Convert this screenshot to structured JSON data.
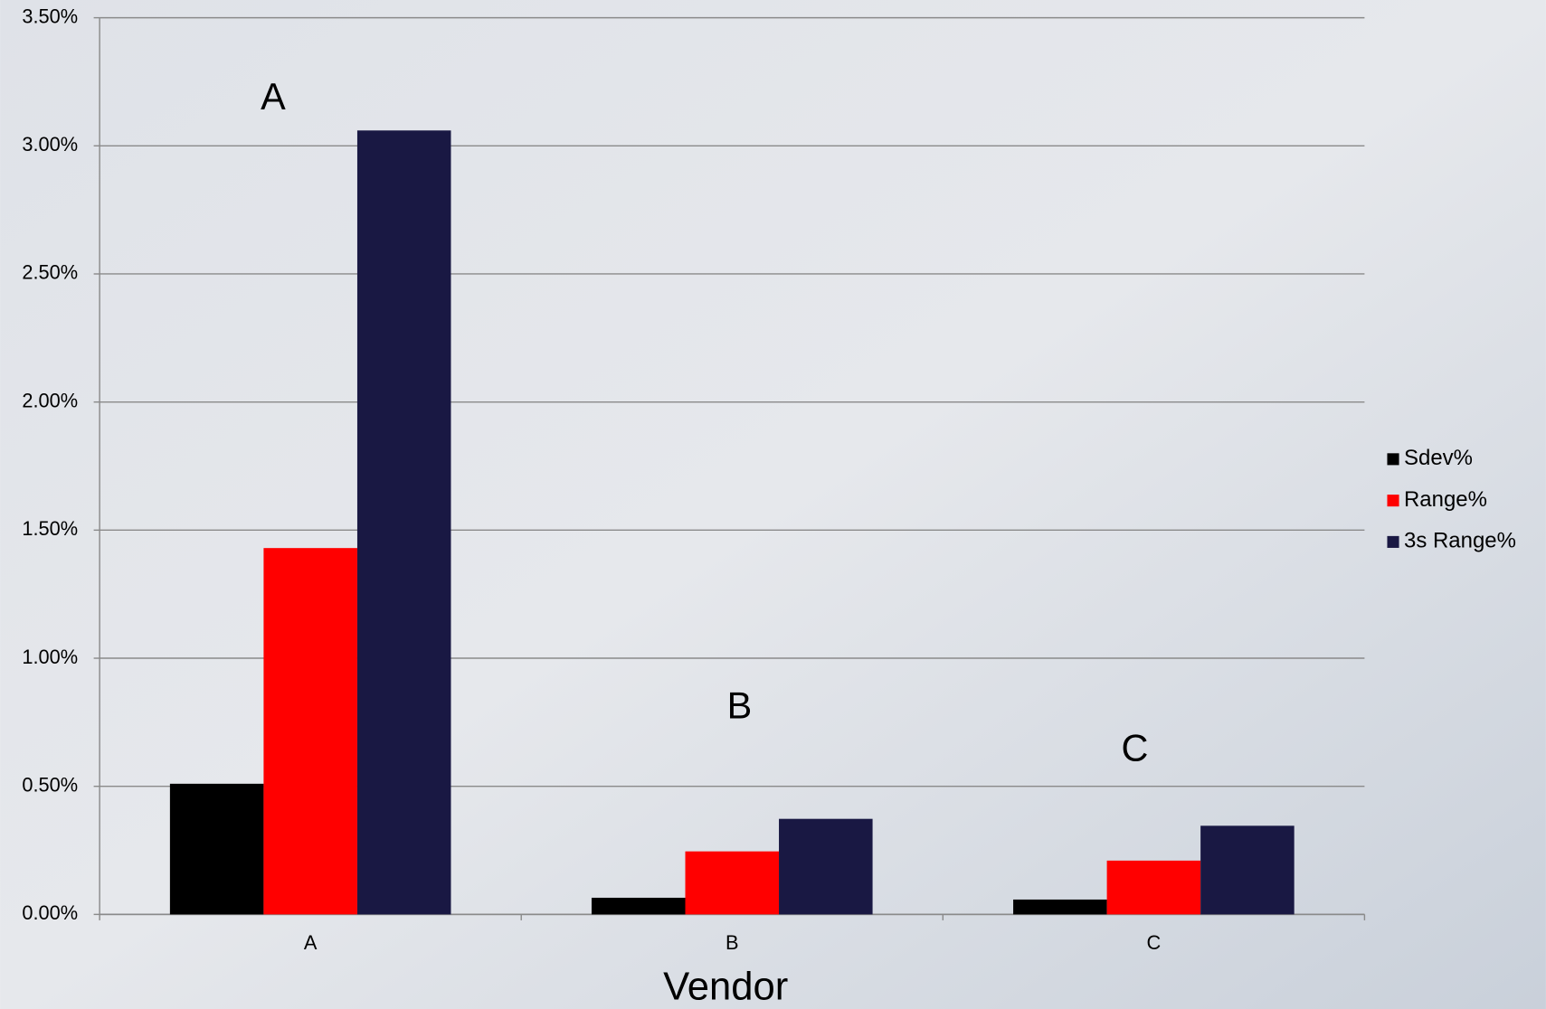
{
  "chart_data": {
    "type": "bar",
    "x_label": "Vendor",
    "categories": [
      "A",
      "B",
      "C"
    ],
    "series": [
      {
        "name": "Sdev%",
        "color": "#000000",
        "values": [
          0.51,
          0.065,
          0.058
        ]
      },
      {
        "name": "Range%",
        "color": "#ff0000",
        "values": [
          1.43,
          0.246,
          0.21
        ]
      },
      {
        "name": "3s Range%",
        "color": "#191843",
        "values": [
          3.06,
          0.373,
          0.346
        ]
      }
    ],
    "ylim": [
      0,
      3.5
    ],
    "yticks": [
      {
        "value": 0,
        "label": "0.00%"
      },
      {
        "value": 0.5,
        "label": "0.50%"
      },
      {
        "value": 1,
        "label": "1.00%"
      },
      {
        "value": 1.5,
        "label": "1.50%"
      },
      {
        "value": 2,
        "label": "2.00%"
      },
      {
        "value": 2.5,
        "label": "2.50%"
      },
      {
        "value": 3,
        "label": "3.00%"
      },
      {
        "value": 3.5,
        "label": "3.50%"
      }
    ],
    "grid": true,
    "legend": "right",
    "annotations": [
      "A",
      "B",
      "C"
    ]
  }
}
